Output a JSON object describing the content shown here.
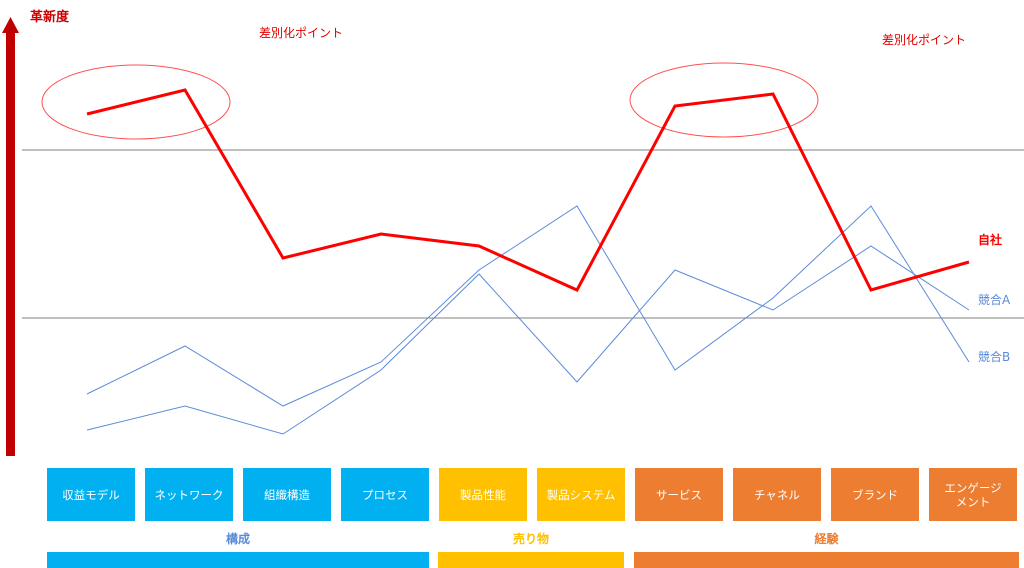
{
  "colors": {
    "axis": "#c00000",
    "self": "#ff0000",
    "competitor": "#5b8bd8",
    "ellipse": "#ff5050",
    "gridline": "#808080",
    "group_construction": "#00b0f0",
    "group_product": "#ffc000",
    "group_experience": "#ed7d31"
  },
  "chart_data": {
    "type": "line",
    "ylabel": "革新度",
    "categories": [
      "収益モデル",
      "ネットワーク",
      "組織構造",
      "プロセス",
      "製品性能",
      "製品システム",
      "サービス",
      "チャネル",
      "ブランド",
      "エンゲージメント"
    ],
    "category_display": [
      "収益モデル",
      "ネットワーク",
      "組織構造",
      "プロセス",
      "製品性能",
      "製品システム",
      "サービス",
      "チャネル",
      "ブランド",
      "エンゲージ\nメント"
    ],
    "category_groups": [
      {
        "label": "構成",
        "from": 0,
        "to": 3,
        "color": "#00b0f0"
      },
      {
        "label": "売り物",
        "from": 4,
        "to": 5,
        "color": "#ffc000"
      },
      {
        "label": "経験",
        "from": 6,
        "to": 9,
        "color": "#ed7d31"
      }
    ],
    "ylim": [
      0,
      100
    ],
    "reference_lines": [
      75,
      33
    ],
    "series": [
      {
        "name": "自社",
        "values": [
          84,
          90,
          48,
          54,
          51,
          40,
          86,
          89,
          40,
          47
        ],
        "color": "#ff0000",
        "width": 3
      },
      {
        "name": "競合A",
        "values": [
          5,
          11,
          4,
          20,
          44,
          17,
          45,
          35,
          51,
          35
        ],
        "color": "#5b8bd8",
        "width": 1
      },
      {
        "name": "競合B",
        "values": [
          14,
          26,
          11,
          22,
          45,
          61,
          20,
          38,
          61,
          22
        ],
        "color": "#5b8bd8",
        "width": 1
      }
    ],
    "annotations": [
      {
        "text": "差別化ポイント",
        "from": 0,
        "to": 1
      },
      {
        "text": "差別化ポイント",
        "from": 6,
        "to": 7
      }
    ],
    "grid": false
  }
}
